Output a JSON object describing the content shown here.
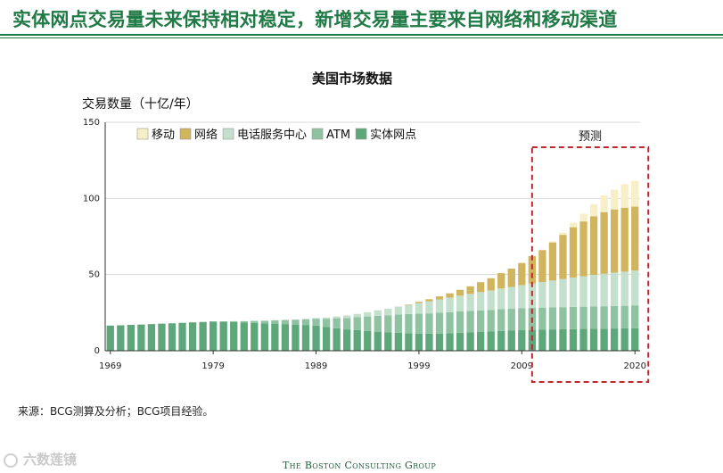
{
  "header": {
    "title": "实体网点交易量未来保持相对稳定，新增交易量主要来自网络和移动渠道"
  },
  "source_note": "来源：BCG测算及分析；BCG项目经验。",
  "footer": {
    "brand": "The Boston Consulting Group",
    "watermark": "六数莲镜"
  },
  "colors": {
    "accent": "#1f7a45",
    "forecast_box": "#c0272d",
    "grid": "#d9d9d9"
  },
  "chart_data": {
    "type": "bar",
    "stacked": true,
    "title": "美国市场数据",
    "ylabel": "交易数量（十亿/年）",
    "xlabel": "",
    "ylim": [
      0,
      150
    ],
    "yticks": [
      0,
      50,
      100,
      150
    ],
    "x_tick_labels": [
      "1969",
      "1979",
      "1989",
      "1999",
      "2009",
      "2020"
    ],
    "x": [
      1969,
      1970,
      1971,
      1972,
      1973,
      1974,
      1975,
      1976,
      1977,
      1978,
      1979,
      1980,
      1981,
      1982,
      1983,
      1984,
      1985,
      1986,
      1987,
      1988,
      1989,
      1990,
      1991,
      1992,
      1993,
      1994,
      1995,
      1996,
      1997,
      1998,
      1999,
      2000,
      2001,
      2002,
      2003,
      2004,
      2005,
      2006,
      2007,
      2008,
      2009,
      2010,
      2011,
      2012,
      2013,
      2014,
      2015,
      2016,
      2017,
      2018,
      2019,
      2020
    ],
    "forecast_label": "预测",
    "forecast_range": [
      2011,
      2020
    ],
    "legend_order": [
      "移动",
      "网络",
      "电话服务中心",
      "ATM",
      "实体网点"
    ],
    "series": [
      {
        "name": "实体网点",
        "color": "#5ea77a",
        "values": [
          16.5,
          16.7,
          17,
          17.2,
          17.5,
          17.8,
          18,
          18.3,
          18.6,
          18.9,
          19.2,
          19,
          18.8,
          18.5,
          18.3,
          18,
          17.8,
          17.5,
          17.2,
          16.9,
          16.5,
          15.5,
          14.8,
          14,
          13.5,
          13,
          12.5,
          12,
          11.8,
          11.5,
          11.3,
          11.2,
          11.3,
          11.5,
          11.8,
          12,
          12.3,
          12.6,
          13,
          13.2,
          13.5,
          13.7,
          13.8,
          14,
          14.1,
          14.2,
          14.3,
          14.4,
          14.5,
          14.6,
          14.7,
          14.8
        ]
      },
      {
        "name": "ATM",
        "color": "#8fc2a1",
        "values": [
          0,
          0,
          0,
          0,
          0,
          0,
          0,
          0,
          0,
          0,
          0,
          0.3,
          0.6,
          0.9,
          1.3,
          1.7,
          2.2,
          2.7,
          3.2,
          3.8,
          4.5,
          5.5,
          6.5,
          7.5,
          8.5,
          9.5,
          10.5,
          11.3,
          12,
          12.6,
          13,
          13.3,
          13.6,
          13.8,
          14,
          14.1,
          14.2,
          14.2,
          14.3,
          14.3,
          14.4,
          14.4,
          14.5,
          14.5,
          14.5,
          14.6,
          14.6,
          14.7,
          14.7,
          14.8,
          14.8,
          15
        ]
      },
      {
        "name": "电话服务中心",
        "color": "#c3e0cc",
        "values": [
          0,
          0,
          0,
          0,
          0,
          0,
          0,
          0,
          0,
          0,
          0,
          0,
          0,
          0,
          0,
          0,
          0,
          0,
          0,
          0.2,
          0.5,
          0.8,
          1.2,
          1.7,
          2.2,
          2.8,
          3.5,
          4.3,
          5.2,
          6,
          7,
          8,
          8.8,
          9.6,
          10.4,
          11.2,
          12,
          12.8,
          13.6,
          14.4,
          15.2,
          16,
          16.8,
          17.6,
          18.5,
          19.3,
          20,
          20.7,
          21.3,
          21.9,
          22.4,
          22.8
        ]
      },
      {
        "name": "网络",
        "color": "#d1b45e",
        "values": [
          0,
          0,
          0,
          0,
          0,
          0,
          0,
          0,
          0,
          0,
          0,
          0,
          0,
          0,
          0,
          0,
          0,
          0,
          0,
          0,
          0,
          0,
          0,
          0,
          0,
          0,
          0,
          0,
          0,
          0.3,
          0.8,
          1.3,
          2,
          2.8,
          3.8,
          5,
          6.5,
          8,
          10,
          12,
          14.5,
          18,
          21,
          25,
          29,
          33,
          36,
          38.5,
          40.5,
          41.5,
          42,
          42
        ]
      },
      {
        "name": "移动",
        "color": "#f7efc8",
        "values": [
          0,
          0,
          0,
          0,
          0,
          0,
          0,
          0,
          0,
          0,
          0,
          0,
          0,
          0,
          0,
          0,
          0,
          0,
          0,
          0,
          0,
          0,
          0,
          0,
          0,
          0,
          0,
          0,
          0,
          0,
          0,
          0,
          0,
          0,
          0,
          0,
          0,
          0,
          0,
          0,
          0,
          0,
          0.3,
          0.8,
          1.5,
          3,
          5,
          8,
          11,
          13,
          15.5,
          17
        ]
      }
    ]
  }
}
